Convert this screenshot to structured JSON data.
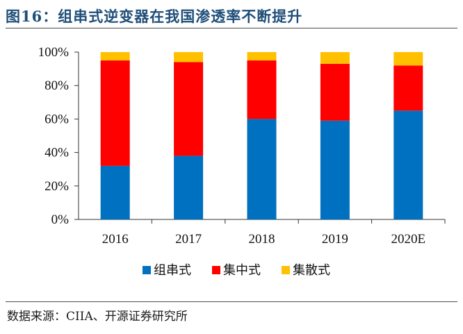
{
  "page": {
    "title": "图16：组串式逆变器在我国渗透率不断提升",
    "source": "数据来源：CIIA、开源证券研究所"
  },
  "chart_data": {
    "type": "bar",
    "stacked": true,
    "categories": [
      "2016",
      "2017",
      "2018",
      "2019",
      "2020E"
    ],
    "series": [
      {
        "name": "组串式",
        "values": [
          32,
          38,
          60,
          59,
          65
        ],
        "color": "#0070c0"
      },
      {
        "name": "集中式",
        "values": [
          63,
          56,
          35,
          34,
          27
        ],
        "color": "#ff0000"
      },
      {
        "name": "集散式",
        "values": [
          5,
          6,
          5,
          7,
          8
        ],
        "color": "#ffc000"
      }
    ],
    "yticks": [
      "0%",
      "20%",
      "40%",
      "60%",
      "80%",
      "100%"
    ],
    "ylim": [
      0,
      100
    ],
    "legend_position": "bottom",
    "grid": false
  }
}
